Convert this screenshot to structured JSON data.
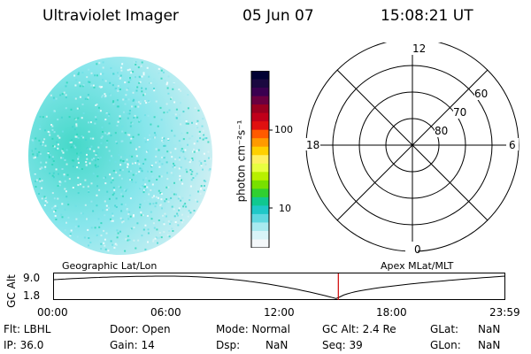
{
  "header": {
    "instrument": "Ultraviolet Imager",
    "date": "05 Jun 07",
    "time": "15:08:21 UT"
  },
  "colorbar": {
    "label_html": "photon cm⁻²s⁻¹",
    "ticks": [
      "100",
      "10"
    ],
    "colors": [
      "#000033",
      "#1a0840",
      "#3a0050",
      "#6a0040",
      "#9a0020",
      "#c0001a",
      "#e01010",
      "#ff5a00",
      "#ff9a00",
      "#ffd000",
      "#fff060",
      "#e8ff40",
      "#b8f000",
      "#78e000",
      "#30d030",
      "#10c890",
      "#20c8c8",
      "#60d8e0",
      "#a8eaf0",
      "#d8f4f8",
      "#f4f8fa"
    ]
  },
  "polar": {
    "labels": {
      "top": "12",
      "bottom": "0",
      "left": "18",
      "right": "6"
    },
    "rings": [
      "60",
      "70",
      "80"
    ]
  },
  "timeline": {
    "left_caption": "Geographic Lat/Lon",
    "right_caption": "Apex MLat/MLT",
    "axis_name": "GC Alt",
    "y_top": "9.0",
    "y_bottom": "1.8",
    "x_ticks": [
      "00:00",
      "06:00",
      "12:00",
      "18:00",
      "23:59"
    ],
    "marker_fraction": 0.63
  },
  "info": {
    "flt": "Flt: LBHL",
    "ip": "IP: 36.0",
    "door": "Door: Open",
    "gain": "Gain: 14",
    "mode": "Mode: Normal",
    "dsp": "Dsp:",
    "dsp_val": "NaN",
    "gcalt": "GC Alt: 2.4 Re",
    "seq": "Seq: 39",
    "glat": "GLat:",
    "glat_val": "NaN",
    "glon": "GLon:",
    "glon_val": "NaN"
  }
}
